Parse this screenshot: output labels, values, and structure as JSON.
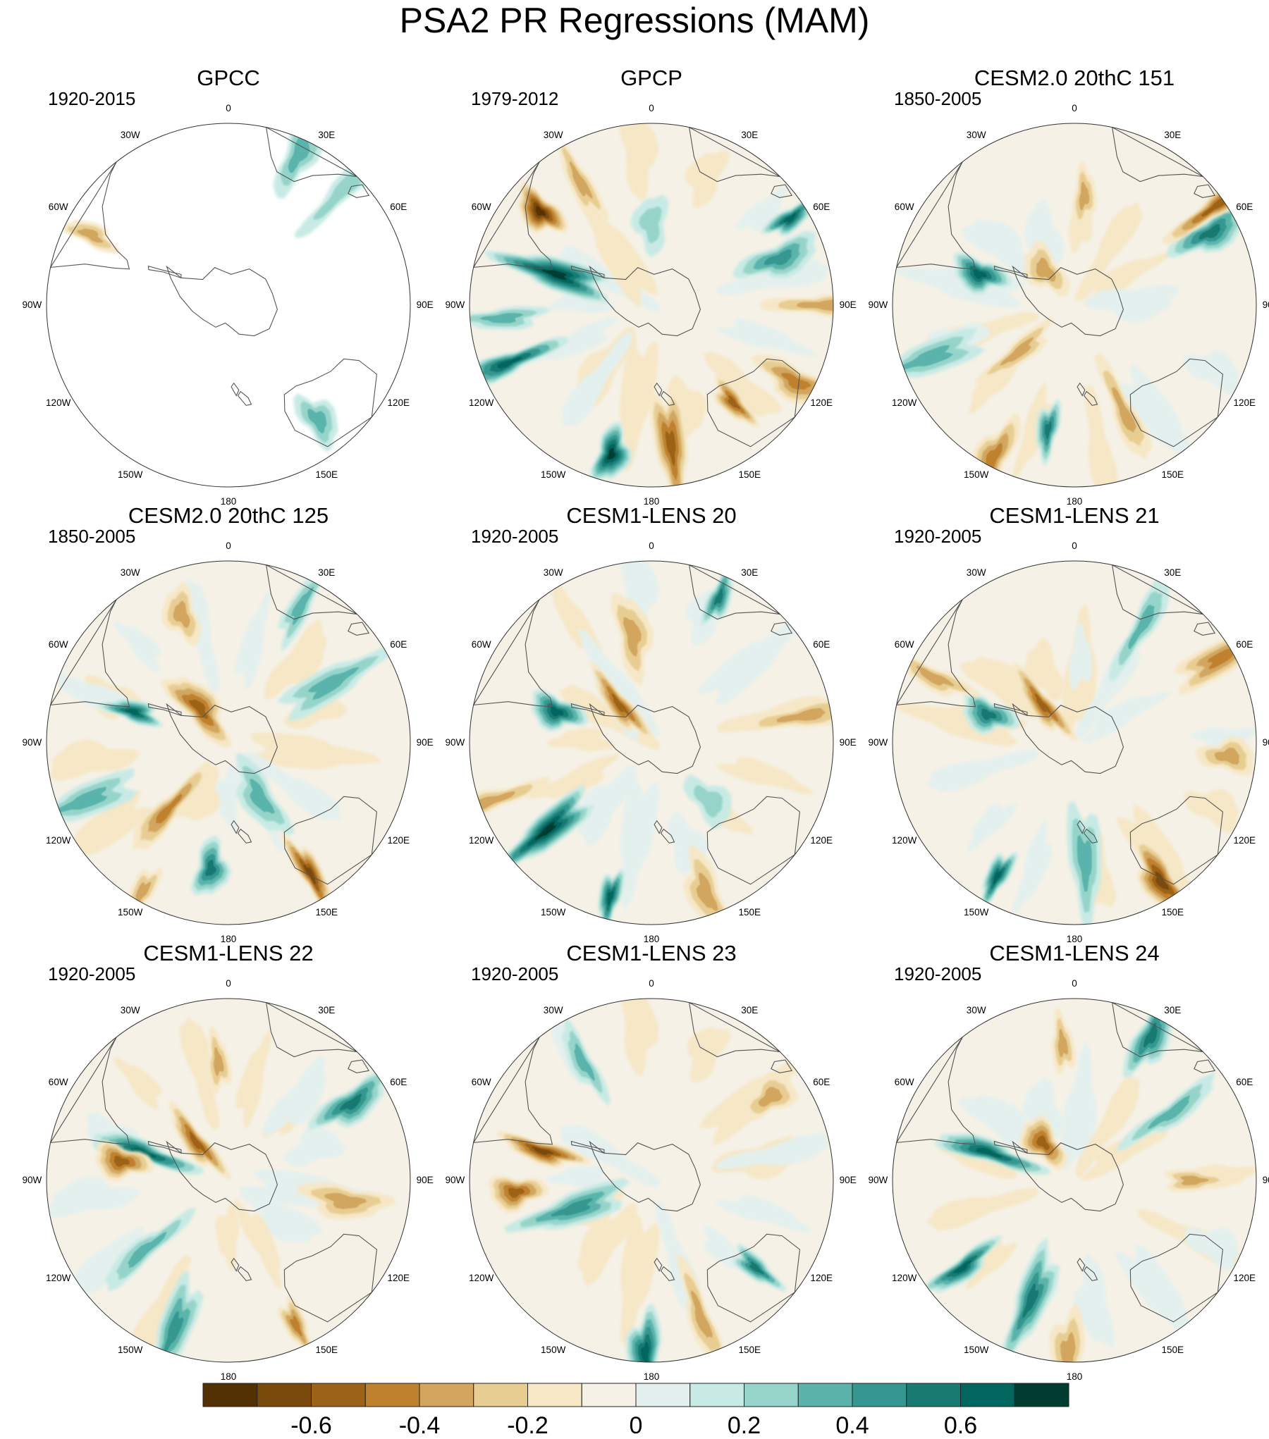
{
  "title": "PSA2 PR Regressions (MAM)",
  "chart_data": [
    {
      "type": "heatmap",
      "projection": "south-polar-stereographic",
      "title": "GPCC",
      "period": "1920-2015",
      "coverage": "land-only",
      "features": [
        {
          "kind": "neg",
          "lon": -63,
          "r": 0.85,
          "strength": 0.3
        },
        {
          "kind": "pos",
          "lon": 25,
          "r": 0.92,
          "strength": 0.25
        },
        {
          "kind": "pos",
          "lon": 45,
          "r": 0.88,
          "strength": 0.2
        },
        {
          "kind": "pos",
          "lon": 142,
          "r": 0.8,
          "strength": 0.25
        }
      ]
    },
    {
      "type": "heatmap",
      "projection": "south-polar-stereographic",
      "title": "GPCP",
      "period": "1979-2012",
      "features": [
        {
          "kind": "neg",
          "lon": -50,
          "r": 0.8,
          "strength": 0.65
        },
        {
          "kind": "neg",
          "lon": -30,
          "r": 0.78,
          "strength": 0.35
        },
        {
          "kind": "pos",
          "lon": -72,
          "r": 0.55,
          "strength": 0.65
        },
        {
          "kind": "pos",
          "lon": 58,
          "r": 0.9,
          "strength": 0.6
        },
        {
          "kind": "pos",
          "lon": 70,
          "r": 0.75,
          "strength": 0.4
        },
        {
          "kind": "pos",
          "lon": -112,
          "r": 0.85,
          "strength": 0.55
        },
        {
          "kind": "pos",
          "lon": -165,
          "r": 0.85,
          "strength": 0.7
        },
        {
          "kind": "pos",
          "lon": -95,
          "r": 0.82,
          "strength": 0.35
        },
        {
          "kind": "neg",
          "lon": 172,
          "r": 0.78,
          "strength": 0.5
        },
        {
          "kind": "neg",
          "lon": 140,
          "r": 0.7,
          "strength": 0.5
        },
        {
          "kind": "neg",
          "lon": 118,
          "r": 0.9,
          "strength": 0.4
        },
        {
          "kind": "neg",
          "lon": 90,
          "r": 0.95,
          "strength": 0.25
        },
        {
          "kind": "pos",
          "lon": 0,
          "r": 0.45,
          "strength": 0.2
        }
      ]
    },
    {
      "type": "heatmap",
      "projection": "south-polar-stereographic",
      "title": "CESM2.0 20thC 151",
      "period": "1850-2005",
      "features": [
        {
          "kind": "neg",
          "lon": 5,
          "r": 0.6,
          "strength": 0.25
        },
        {
          "kind": "pos",
          "lon": 62,
          "r": 0.85,
          "strength": 0.45
        },
        {
          "kind": "neg",
          "lon": 55,
          "r": 0.95,
          "strength": 0.45
        },
        {
          "kind": "pos",
          "lon": -72,
          "r": 0.55,
          "strength": 0.6
        },
        {
          "kind": "neg",
          "lon": -130,
          "r": 0.4,
          "strength": 0.25
        },
        {
          "kind": "pos",
          "lon": -110,
          "r": 0.85,
          "strength": 0.35
        },
        {
          "kind": "pos",
          "lon": -168,
          "r": 0.7,
          "strength": 0.45
        },
        {
          "kind": "neg",
          "lon": -152,
          "r": 0.95,
          "strength": 0.4
        },
        {
          "kind": "neg",
          "lon": 155,
          "r": 0.65,
          "strength": 0.25
        },
        {
          "kind": "neg",
          "lon": -40,
          "r": 0.25,
          "strength": 0.35
        }
      ]
    },
    {
      "type": "heatmap",
      "projection": "south-polar-stereographic",
      "title": "CESM2.0 20thC 125",
      "period": "1850-2005",
      "features": [
        {
          "kind": "neg",
          "lon": -20,
          "r": 0.75,
          "strength": 0.3
        },
        {
          "kind": "pos",
          "lon": 28,
          "r": 0.85,
          "strength": 0.35
        },
        {
          "kind": "pos",
          "lon": 60,
          "r": 0.65,
          "strength": 0.3
        },
        {
          "kind": "pos",
          "lon": -72,
          "r": 0.55,
          "strength": 0.6
        },
        {
          "kind": "neg",
          "lon": -40,
          "r": 0.25,
          "strength": 0.45
        },
        {
          "kind": "neg",
          "lon": -138,
          "r": 0.5,
          "strength": 0.4
        },
        {
          "kind": "pos",
          "lon": -172,
          "r": 0.7,
          "strength": 0.45
        },
        {
          "kind": "neg",
          "lon": 148,
          "r": 0.85,
          "strength": 0.55
        },
        {
          "kind": "pos",
          "lon": -112,
          "r": 0.85,
          "strength": 0.3
        },
        {
          "kind": "neg",
          "lon": -150,
          "r": 0.95,
          "strength": 0.3
        },
        {
          "kind": "pos",
          "lon": 150,
          "r": 0.35,
          "strength": 0.35
        }
      ]
    },
    {
      "type": "heatmap",
      "projection": "south-polar-stereographic",
      "title": "CESM1-LENS 20",
      "period": "1920-2005",
      "features": [
        {
          "kind": "pos",
          "lon": 25,
          "r": 0.88,
          "strength": 0.45
        },
        {
          "kind": "neg",
          "lon": -10,
          "r": 0.6,
          "strength": 0.25
        },
        {
          "kind": "neg",
          "lon": 80,
          "r": 0.85,
          "strength": 0.3
        },
        {
          "kind": "pos",
          "lon": -72,
          "r": 0.55,
          "strength": 0.55
        },
        {
          "kind": "neg",
          "lon": -40,
          "r": 0.27,
          "strength": 0.45
        },
        {
          "kind": "pos",
          "lon": -130,
          "r": 0.75,
          "strength": 0.65
        },
        {
          "kind": "pos",
          "lon": -165,
          "r": 0.88,
          "strength": 0.6
        },
        {
          "kind": "neg",
          "lon": 160,
          "r": 0.88,
          "strength": 0.35
        },
        {
          "kind": "neg",
          "lon": -110,
          "r": 0.95,
          "strength": 0.3
        },
        {
          "kind": "pos",
          "lon": 135,
          "r": 0.45,
          "strength": 0.2
        }
      ]
    },
    {
      "type": "heatmap",
      "projection": "south-polar-stereographic",
      "title": "CESM1-LENS 21",
      "period": "1920-2005",
      "features": [
        {
          "kind": "pos",
          "lon": -72,
          "r": 0.5,
          "strength": 0.5
        },
        {
          "kind": "neg",
          "lon": -40,
          "r": 0.27,
          "strength": 0.45
        },
        {
          "kind": "neg",
          "lon": 60,
          "r": 0.95,
          "strength": 0.4
        },
        {
          "kind": "pos",
          "lon": -150,
          "r": 0.85,
          "strength": 0.55
        },
        {
          "kind": "neg",
          "lon": 148,
          "r": 0.9,
          "strength": 0.6
        },
        {
          "kind": "pos",
          "lon": 30,
          "r": 0.75,
          "strength": 0.25
        },
        {
          "kind": "neg",
          "lon": 95,
          "r": 0.85,
          "strength": 0.25
        },
        {
          "kind": "neg",
          "lon": -65,
          "r": 0.85,
          "strength": 0.3
        },
        {
          "kind": "pos",
          "lon": 175,
          "r": 0.65,
          "strength": 0.3
        }
      ]
    },
    {
      "type": "heatmap",
      "projection": "south-polar-stereographic",
      "title": "CESM1-LENS 22",
      "period": "1920-2005",
      "features": [
        {
          "kind": "neg",
          "lon": -5,
          "r": 0.65,
          "strength": 0.35
        },
        {
          "kind": "pos",
          "lon": 58,
          "r": 0.8,
          "strength": 0.5
        },
        {
          "kind": "pos",
          "lon": -72,
          "r": 0.5,
          "strength": 0.55
        },
        {
          "kind": "neg",
          "lon": -80,
          "r": 0.6,
          "strength": 0.45
        },
        {
          "kind": "neg",
          "lon": -40,
          "r": 0.27,
          "strength": 0.5
        },
        {
          "kind": "pos",
          "lon": -160,
          "r": 0.88,
          "strength": 0.4
        },
        {
          "kind": "neg",
          "lon": 155,
          "r": 0.88,
          "strength": 0.4
        },
        {
          "kind": "neg",
          "lon": 100,
          "r": 0.65,
          "strength": 0.25
        },
        {
          "kind": "pos",
          "lon": -130,
          "r": 0.6,
          "strength": 0.3
        }
      ]
    },
    {
      "type": "heatmap",
      "projection": "south-polar-stereographic",
      "title": "CESM1-LENS 23",
      "period": "1920-2005",
      "features": [
        {
          "kind": "neg",
          "lon": -95,
          "r": 0.75,
          "strength": 0.5
        },
        {
          "kind": "neg",
          "lon": -75,
          "r": 0.62,
          "strength": 0.55
        },
        {
          "kind": "pos",
          "lon": -110,
          "r": 0.45,
          "strength": 0.4
        },
        {
          "kind": "pos",
          "lon": 130,
          "r": 0.75,
          "strength": 0.45
        },
        {
          "kind": "pos",
          "lon": -178,
          "r": 0.95,
          "strength": 0.55
        },
        {
          "kind": "neg",
          "lon": 160,
          "r": 0.8,
          "strength": 0.3
        },
        {
          "kind": "neg",
          "lon": 55,
          "r": 0.8,
          "strength": 0.35
        },
        {
          "kind": "pos",
          "lon": -30,
          "r": 0.75,
          "strength": 0.25
        }
      ]
    },
    {
      "type": "heatmap",
      "projection": "south-polar-stereographic",
      "title": "CESM1-LENS 24",
      "period": "1920-2005",
      "features": [
        {
          "kind": "neg",
          "lon": -5,
          "r": 0.75,
          "strength": 0.3
        },
        {
          "kind": "pos",
          "lon": 28,
          "r": 0.9,
          "strength": 0.45
        },
        {
          "kind": "pos",
          "lon": -72,
          "r": 0.5,
          "strength": 0.55
        },
        {
          "kind": "neg",
          "lon": -40,
          "r": 0.27,
          "strength": 0.45
        },
        {
          "kind": "pos",
          "lon": -128,
          "r": 0.78,
          "strength": 0.55
        },
        {
          "kind": "pos",
          "lon": -160,
          "r": 0.7,
          "strength": 0.45
        },
        {
          "kind": "neg",
          "lon": 90,
          "r": 0.65,
          "strength": 0.3
        },
        {
          "kind": "neg",
          "lon": -178,
          "r": 0.95,
          "strength": 0.35
        },
        {
          "kind": "pos",
          "lon": 55,
          "r": 0.65,
          "strength": 0.25
        }
      ]
    }
  ],
  "longitude_labels": [
    {
      "lon": 0,
      "text": "0"
    },
    {
      "lon": 30,
      "text": "30E"
    },
    {
      "lon": 60,
      "text": "60E"
    },
    {
      "lon": 90,
      "text": "90E"
    },
    {
      "lon": 120,
      "text": "120E"
    },
    {
      "lon": 150,
      "text": "150E"
    },
    {
      "lon": 180,
      "text": "180"
    },
    {
      "lon": -150,
      "text": "150W"
    },
    {
      "lon": -120,
      "text": "120W"
    },
    {
      "lon": -90,
      "text": "90W"
    },
    {
      "lon": -60,
      "text": "60W"
    },
    {
      "lon": -30,
      "text": "30W"
    }
  ],
  "colorbar": {
    "colors": [
      "#543005",
      "#7a4a0c",
      "#9c6217",
      "#bf812d",
      "#d2a65e",
      "#e7cd92",
      "#f6e7c6",
      "#f5f1e6",
      "#e4f0ee",
      "#c7eae5",
      "#96d4c9",
      "#5ab4ac",
      "#35978f",
      "#197a72",
      "#01665e",
      "#003c30"
    ],
    "ticks": [
      {
        "value": -0.6,
        "text": "-0.6"
      },
      {
        "value": -0.4,
        "text": "-0.4"
      },
      {
        "value": -0.2,
        "text": "-0.2"
      },
      {
        "value": 0,
        "text": "0"
      },
      {
        "value": 0.2,
        "text": "0.2"
      },
      {
        "value": 0.4,
        "text": "0.4"
      },
      {
        "value": 0.6,
        "text": "0.6"
      }
    ],
    "range": [
      -0.8,
      0.8
    ]
  }
}
